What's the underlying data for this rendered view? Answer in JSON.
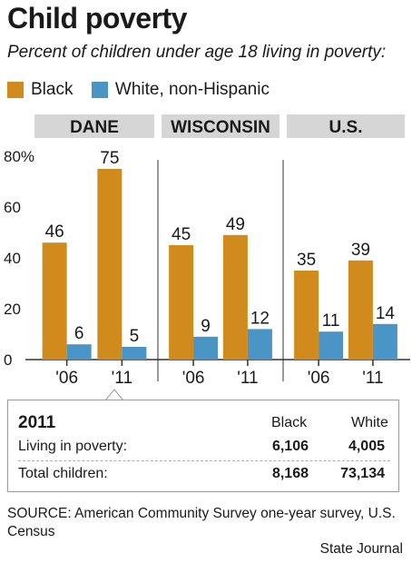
{
  "title": "Child poverty",
  "subtitle": "Percent of children under age 18 living in poverty:",
  "legend": [
    {
      "label": "Black",
      "color": "#d18b1c"
    },
    {
      "label": "White, non-Hispanic",
      "color": "#4a94c6"
    }
  ],
  "chart_data": {
    "type": "bar",
    "panels": [
      "DANE",
      "WISCONSIN",
      "U.S."
    ],
    "categories": [
      "'06",
      "'11",
      "'06",
      "'11",
      "'06",
      "'11"
    ],
    "series": [
      {
        "name": "Black",
        "color": "#d18b1c",
        "values": [
          46,
          75,
          45,
          49,
          35,
          39
        ]
      },
      {
        "name": "White, non-Hispanic",
        "color": "#4a94c6",
        "values": [
          6,
          5,
          9,
          12,
          11,
          14
        ]
      }
    ],
    "y_ticks": [
      "0",
      "20",
      "40",
      "60",
      "80%"
    ],
    "ylim": [
      0,
      80
    ],
    "grid": false,
    "legend_position": "top"
  },
  "table": {
    "year": "2011",
    "columns": [
      "Black",
      "White"
    ],
    "rows": [
      {
        "label": "Living in poverty:",
        "values": [
          "6,106",
          "4,005"
        ]
      },
      {
        "label": "Total children:",
        "values": [
          "8,168",
          "73,134"
        ]
      }
    ]
  },
  "source": "SOURCE: American Community Survey one-year survey, U.S. Census",
  "credit": "State Journal"
}
